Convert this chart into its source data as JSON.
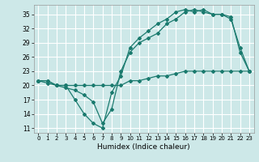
{
  "xlabel": "Humidex (Indice chaleur)",
  "background_color": "#cde8e8",
  "grid_color": "#ffffff",
  "line_color": "#1a7a6e",
  "ylim": [
    10,
    37
  ],
  "xlim": [
    -0.5,
    23.5
  ],
  "yticks": [
    11,
    14,
    17,
    20,
    23,
    26,
    29,
    32,
    35
  ],
  "xticks": [
    0,
    1,
    2,
    3,
    4,
    5,
    6,
    7,
    8,
    9,
    10,
    11,
    12,
    13,
    14,
    15,
    16,
    17,
    18,
    19,
    20,
    21,
    22,
    23
  ],
  "line1_x": [
    0,
    1,
    2,
    3,
    4,
    5,
    6,
    7,
    8,
    9,
    10,
    11,
    12,
    13,
    14,
    15,
    16,
    17,
    18,
    19,
    20,
    21,
    22,
    23
  ],
  "line1_y": [
    21,
    20.5,
    20,
    20,
    20,
    20,
    20,
    20,
    20,
    20,
    21,
    21,
    21.5,
    22,
    22,
    22.5,
    23,
    23,
    23,
    23,
    23,
    23,
    23,
    23
  ],
  "line2_x": [
    0,
    1,
    2,
    3,
    4,
    5,
    6,
    7,
    8,
    9,
    10,
    11,
    12,
    13,
    14,
    15,
    16,
    17,
    18,
    19,
    20,
    21,
    22,
    23
  ],
  "line2_y": [
    21,
    21,
    20,
    20,
    17,
    14,
    12,
    11,
    18.5,
    22,
    28,
    30,
    31.5,
    33,
    34,
    35.5,
    36,
    35.5,
    36,
    35,
    35,
    34,
    28,
    23
  ],
  "line3_x": [
    0,
    1,
    2,
    3,
    4,
    5,
    6,
    7,
    8,
    9,
    10,
    11,
    12,
    13,
    14,
    15,
    16,
    17,
    18,
    19,
    20,
    21,
    22,
    23
  ],
  "line3_y": [
    21,
    21,
    20,
    19.5,
    19,
    18,
    16.5,
    12,
    15,
    23,
    27,
    29,
    30,
    31,
    33,
    34,
    35.5,
    36,
    35.5,
    35,
    35,
    34.5,
    27,
    23
  ]
}
